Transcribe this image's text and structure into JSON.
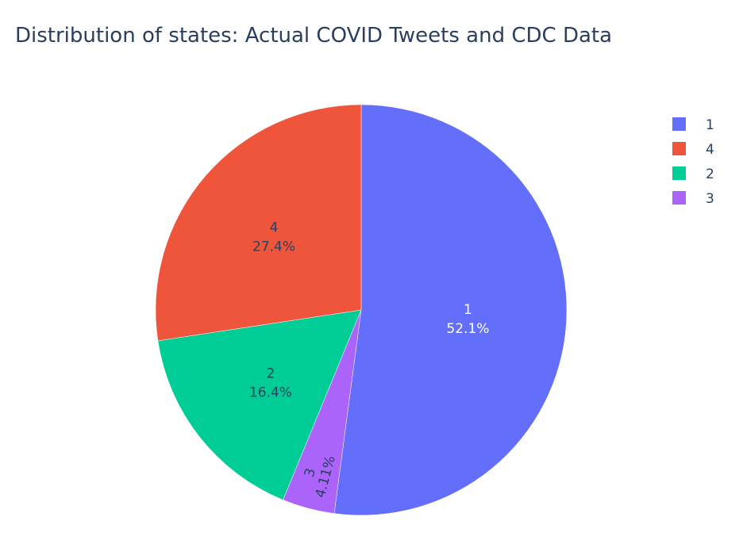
{
  "chart_data": {
    "type": "pie",
    "title": "Distribution of states: Actual COVID Tweets and CDC Data",
    "slices": [
      {
        "label": "1",
        "percent": 52.1,
        "percent_text": "52.1%",
        "color": "#636efa",
        "text_color": "#ffffff"
      },
      {
        "label": "3",
        "percent": 4.11,
        "percent_text": "4.11%",
        "color": "#ab63fa",
        "text_color": "#2a3f5f"
      },
      {
        "label": "2",
        "percent": 16.4,
        "percent_text": "16.4%",
        "color": "#00cc96",
        "text_color": "#2a3f5f"
      },
      {
        "label": "4",
        "percent": 27.4,
        "percent_text": "27.4%",
        "color": "#ef553b",
        "text_color": "#2a3f5f"
      }
    ],
    "direction": "clockwise",
    "start_angle": "top",
    "legend": {
      "placement": "top-right",
      "order": [
        "1",
        "4",
        "2",
        "3"
      ]
    }
  }
}
